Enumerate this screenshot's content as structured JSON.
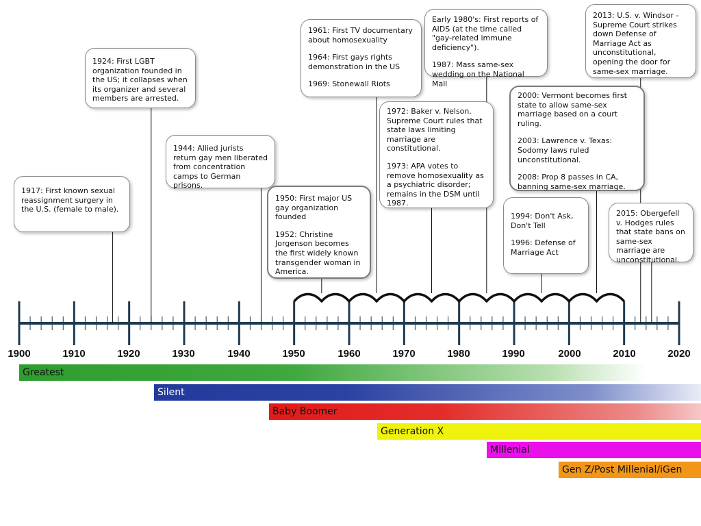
{
  "axis": {
    "years": [
      "1900",
      "1910",
      "1920",
      "1930",
      "1940",
      "1950",
      "1960",
      "1970",
      "1980",
      "1990",
      "2000",
      "2010",
      "2020"
    ],
    "start_year": 1900,
    "end_year": 2020
  },
  "events": [
    {
      "id": "e1917",
      "year": 1917,
      "paragraphs": [
        "1917: First known sexual reassignment surgery in the U.S. (female to male)."
      ]
    },
    {
      "id": "e1924",
      "year": 1924,
      "paragraphs": [
        "1924: First LGBT organization founded in the US; it collapses when its organizer and several members are arrested."
      ]
    },
    {
      "id": "e1944",
      "year": 1944,
      "paragraphs": [
        "1944: Allied jurists return gay men liberated from concentration camps to German prisons."
      ]
    },
    {
      "id": "e1950",
      "year": 1955,
      "paragraphs": [
        "1950: First major US gay organization founded",
        "1952: Christine Jorgenson becomes the first widely known transgender woman in America."
      ]
    },
    {
      "id": "e1961",
      "year": 1965,
      "paragraphs": [
        "1961: First TV documentary about homosexuality",
        "1964: First gays rights demonstration in the US",
        "1969: Stonewall Riots"
      ]
    },
    {
      "id": "e1972",
      "year": 1975,
      "paragraphs": [
        "1972: Baker v. Nelson. Supreme Court rules that state laws limiting marriage are constitutional.",
        "1973: APA votes to remove homosexuality as a psychiatric disorder; remains in the DSM until 1987."
      ]
    },
    {
      "id": "e1980",
      "year": 1985,
      "paragraphs": [
        "Early 1980's: First reports of AIDS (at the time called \"gay-related immune deficiency\").",
        "1987: Mass same-sex wedding on the National Mall"
      ]
    },
    {
      "id": "e1994",
      "year": 1995,
      "paragraphs": [
        "1994: Don't Ask, Don't Tell",
        "1996: Defense of Marriage Act"
      ]
    },
    {
      "id": "e2000",
      "year": 2005,
      "paragraphs": [
        "2000: Vermont becomes first state to allow same-sex marriage based on a court ruling.",
        "2003: Lawrence v. Texas: Sodomy laws ruled unconstitutional.",
        "2008: Prop 8 passes in CA, banning same-sex marriage."
      ]
    },
    {
      "id": "e2013",
      "year": 2013,
      "paragraphs": [
        "2013: U.S. v. Windsor - Supreme Court strikes down Defense of Marriage Act as unconstitutional, opening the door for same-sex marriage."
      ]
    },
    {
      "id": "e2015",
      "year": 2015,
      "paragraphs": [
        "2015: Obergefell v. Hodges rules that state bans on same-sex marriage are unconstitutional."
      ]
    }
  ],
  "generations": {
    "greatest": "Greatest",
    "silent": "Silent",
    "boomer": "Baby Boomer",
    "genx": "Generation X",
    "millenial": "Millenial",
    "genz": "Gen Z/Post Millenial/iGen"
  },
  "colors": {
    "axis": "#1f3a4f",
    "greatest": "#2e9d2e",
    "silent": "#233a9c",
    "boomer": "#e11a1a",
    "genx": "#eef20c",
    "millenial": "#ea10ea",
    "genz": "#f29618"
  }
}
